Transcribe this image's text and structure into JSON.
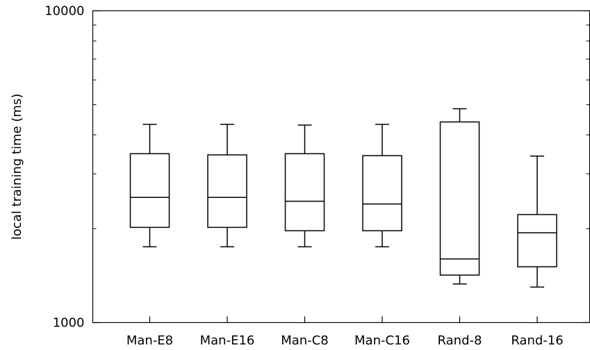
{
  "chart_data": {
    "type": "boxplot",
    "title": "",
    "xlabel": "",
    "ylabel": "local training time (ms)",
    "yscale": "log",
    "ylim": [
      1000,
      10000
    ],
    "yticks": [
      1000,
      10000
    ],
    "ytick_labels": [
      "1000",
      "10000"
    ],
    "grid": false,
    "categories": [
      "Man-E8",
      "Man-E16",
      "Man-C8",
      "Man-C16",
      "Rand-8",
      "Rand-16"
    ],
    "boxes": [
      {
        "label": "Man-E8",
        "whisker_low": 1750,
        "q1": 2020,
        "median": 2520,
        "q3": 3480,
        "whisker_high": 4320
      },
      {
        "label": "Man-E16",
        "whisker_low": 1750,
        "q1": 2020,
        "median": 2520,
        "q3": 3450,
        "whisker_high": 4320
      },
      {
        "label": "Man-C8",
        "whisker_low": 1750,
        "q1": 1970,
        "median": 2450,
        "q3": 3480,
        "whisker_high": 4300
      },
      {
        "label": "Man-C16",
        "whisker_low": 1750,
        "q1": 1970,
        "median": 2400,
        "q3": 3430,
        "whisker_high": 4320
      },
      {
        "label": "Rand-8",
        "whisker_low": 1330,
        "q1": 1420,
        "median": 1600,
        "q3": 4400,
        "whisker_high": 4850
      },
      {
        "label": "Rand-16",
        "whisker_low": 1300,
        "q1": 1510,
        "median": 1940,
        "q3": 2220,
        "whisker_high": 3420
      }
    ]
  }
}
